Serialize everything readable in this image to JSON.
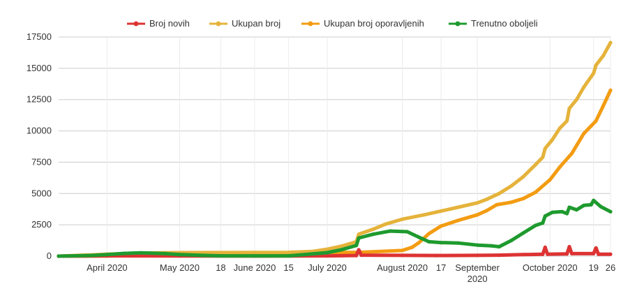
{
  "chart_data": {
    "type": "line",
    "title": "",
    "xlabel": "",
    "ylabel": "",
    "ylim": [
      0,
      17500
    ],
    "x_range": [
      "2020-03-12",
      "2020-10-26"
    ],
    "grid": true,
    "legend_position": "top",
    "y_ticks": [
      0,
      2500,
      5000,
      7500,
      10000,
      12500,
      15000,
      17500
    ],
    "y_tick_labels": [
      "0",
      "2500",
      "5000",
      "7500",
      "10000",
      "12500",
      "15000",
      "17500"
    ],
    "x_ticks": [
      {
        "date": "2020-04-01",
        "label": "April 2020"
      },
      {
        "date": "2020-05-01",
        "label": "May 2020"
      },
      {
        "date": "2020-05-18",
        "label": "18"
      },
      {
        "date": "2020-06-01",
        "label": "June 2020"
      },
      {
        "date": "2020-06-15",
        "label": "15"
      },
      {
        "date": "2020-07-01",
        "label": "July 2020"
      },
      {
        "date": "2020-08-01",
        "label": "August 2020"
      },
      {
        "date": "2020-08-17",
        "label": "17"
      },
      {
        "date": "2020-09-01",
        "label": "September\n2020"
      },
      {
        "date": "2020-10-01",
        "label": "October 2020"
      },
      {
        "date": "2020-10-19",
        "label": "19"
      },
      {
        "date": "2020-10-26",
        "label": "26"
      }
    ],
    "series": [
      {
        "name": "Broj novih",
        "color": "#dd3333",
        "points": [
          [
            "2020-03-12",
            0
          ],
          [
            "2020-04-01",
            20
          ],
          [
            "2020-05-01",
            10
          ],
          [
            "2020-06-01",
            5
          ],
          [
            "2020-07-01",
            20
          ],
          [
            "2020-07-13",
            50
          ],
          [
            "2020-07-14",
            500
          ],
          [
            "2020-07-15",
            80
          ],
          [
            "2020-08-01",
            60
          ],
          [
            "2020-08-15",
            50
          ],
          [
            "2020-09-01",
            60
          ],
          [
            "2020-09-10",
            80
          ],
          [
            "2020-09-20",
            120
          ],
          [
            "2020-09-28",
            150
          ],
          [
            "2020-09-29",
            700
          ],
          [
            "2020-09-30",
            150
          ],
          [
            "2020-10-08",
            180
          ],
          [
            "2020-10-09",
            750
          ],
          [
            "2020-10-10",
            200
          ],
          [
            "2020-10-19",
            200
          ],
          [
            "2020-10-20",
            650
          ],
          [
            "2020-10-21",
            150
          ],
          [
            "2020-10-26",
            150
          ]
        ]
      },
      {
        "name": "Ukupan broj",
        "color": "#e5b33b",
        "points": [
          [
            "2020-03-12",
            0
          ],
          [
            "2020-04-01",
            150
          ],
          [
            "2020-04-15",
            250
          ],
          [
            "2020-05-01",
            280
          ],
          [
            "2020-06-01",
            290
          ],
          [
            "2020-06-15",
            300
          ],
          [
            "2020-06-25",
            380
          ],
          [
            "2020-07-01",
            550
          ],
          [
            "2020-07-07",
            800
          ],
          [
            "2020-07-13",
            1150
          ],
          [
            "2020-07-14",
            1750
          ],
          [
            "2020-07-20",
            2150
          ],
          [
            "2020-07-25",
            2550
          ],
          [
            "2020-08-01",
            2950
          ],
          [
            "2020-08-10",
            3300
          ],
          [
            "2020-08-17",
            3600
          ],
          [
            "2020-08-24",
            3900
          ],
          [
            "2020-09-01",
            4250
          ],
          [
            "2020-09-05",
            4550
          ],
          [
            "2020-09-10",
            5000
          ],
          [
            "2020-09-15",
            5600
          ],
          [
            "2020-09-20",
            6350
          ],
          [
            "2020-09-25",
            7300
          ],
          [
            "2020-09-28",
            7900
          ],
          [
            "2020-09-29",
            8600
          ],
          [
            "2020-10-02",
            9300
          ],
          [
            "2020-10-05",
            10200
          ],
          [
            "2020-10-08",
            10800
          ],
          [
            "2020-10-09",
            11800
          ],
          [
            "2020-10-12",
            12500
          ],
          [
            "2020-10-15",
            13500
          ],
          [
            "2020-10-19",
            14600
          ],
          [
            "2020-10-20",
            15250
          ],
          [
            "2020-10-23",
            16000
          ],
          [
            "2020-10-26",
            17050
          ]
        ]
      },
      {
        "name": "Ukupan broj oporavljenih",
        "color": "#f39c12",
        "points": [
          [
            "2020-03-12",
            0
          ],
          [
            "2020-04-01",
            10
          ],
          [
            "2020-04-15",
            60
          ],
          [
            "2020-05-01",
            180
          ],
          [
            "2020-05-18",
            260
          ],
          [
            "2020-06-01",
            270
          ],
          [
            "2020-06-15",
            275
          ],
          [
            "2020-07-01",
            290
          ],
          [
            "2020-07-14",
            300
          ],
          [
            "2020-08-01",
            450
          ],
          [
            "2020-08-05",
            700
          ],
          [
            "2020-08-08",
            1100
          ],
          [
            "2020-08-12",
            1800
          ],
          [
            "2020-08-17",
            2400
          ],
          [
            "2020-08-24",
            2850
          ],
          [
            "2020-09-01",
            3300
          ],
          [
            "2020-09-05",
            3650
          ],
          [
            "2020-09-09",
            4100
          ],
          [
            "2020-09-15",
            4300
          ],
          [
            "2020-09-20",
            4600
          ],
          [
            "2020-09-25",
            5100
          ],
          [
            "2020-10-01",
            6100
          ],
          [
            "2020-10-05",
            7100
          ],
          [
            "2020-10-10",
            8200
          ],
          [
            "2020-10-15",
            9800
          ],
          [
            "2020-10-20",
            10800
          ],
          [
            "2020-10-23",
            12000
          ],
          [
            "2020-10-26",
            13250
          ]
        ]
      },
      {
        "name": "Trenutno oboljeli",
        "color": "#1e9a2e",
        "points": [
          [
            "2020-03-12",
            0
          ],
          [
            "2020-03-25",
            50
          ],
          [
            "2020-04-01",
            120
          ],
          [
            "2020-04-08",
            220
          ],
          [
            "2020-04-15",
            260
          ],
          [
            "2020-04-25",
            200
          ],
          [
            "2020-05-01",
            120
          ],
          [
            "2020-05-10",
            60
          ],
          [
            "2020-05-18",
            25
          ],
          [
            "2020-06-01",
            20
          ],
          [
            "2020-06-15",
            25
          ],
          [
            "2020-07-01",
            280
          ],
          [
            "2020-07-07",
            520
          ],
          [
            "2020-07-13",
            850
          ],
          [
            "2020-07-14",
            1450
          ],
          [
            "2020-07-20",
            1750
          ],
          [
            "2020-07-27",
            2000
          ],
          [
            "2020-08-03",
            1950
          ],
          [
            "2020-08-08",
            1500
          ],
          [
            "2020-08-12",
            1150
          ],
          [
            "2020-08-17",
            1080
          ],
          [
            "2020-08-24",
            1050
          ],
          [
            "2020-09-01",
            880
          ],
          [
            "2020-09-07",
            820
          ],
          [
            "2020-09-10",
            750
          ],
          [
            "2020-09-15",
            1250
          ],
          [
            "2020-09-20",
            1850
          ],
          [
            "2020-09-25",
            2450
          ],
          [
            "2020-09-28",
            2650
          ],
          [
            "2020-09-29",
            3200
          ],
          [
            "2020-10-02",
            3500
          ],
          [
            "2020-10-06",
            3550
          ],
          [
            "2020-10-08",
            3400
          ],
          [
            "2020-10-09",
            3900
          ],
          [
            "2020-10-12",
            3700
          ],
          [
            "2020-10-15",
            4050
          ],
          [
            "2020-10-18",
            4100
          ],
          [
            "2020-10-19",
            4450
          ],
          [
            "2020-10-22",
            3950
          ],
          [
            "2020-10-26",
            3550
          ]
        ]
      }
    ]
  }
}
